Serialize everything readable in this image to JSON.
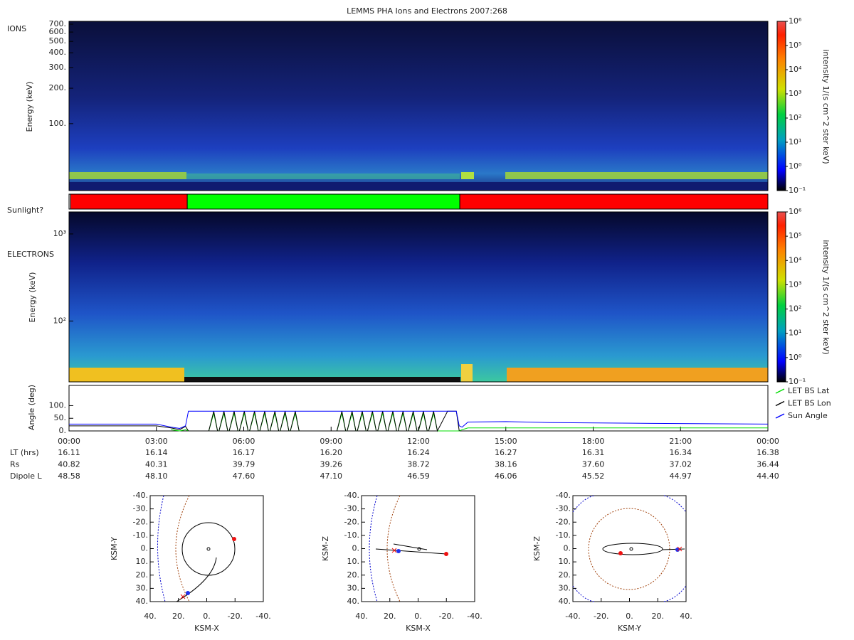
{
  "title": "LEMMS PHA Ions and Electrons  2007:268",
  "chart_data": [
    {
      "type": "heatmap",
      "label": "IONS",
      "ylabel": "Energy (keV)",
      "log_y": true,
      "ylim": [
        27,
        740
      ],
      "yticks": [
        {
          "value": 100,
          "label": "100."
        },
        {
          "value": 200,
          "label": "200."
        },
        {
          "value": 300,
          "label": "300."
        },
        {
          "value": 400,
          "label": "400."
        },
        {
          "value": 500,
          "label": "500."
        },
        {
          "value": 600,
          "label": "600."
        },
        {
          "value": 700,
          "label": "700."
        }
      ],
      "colorbar": {
        "label": "intensity 1/(s cm^2 ster keV)",
        "log": true,
        "lim": [
          0.1,
          1000000
        ],
        "ticks": [
          {
            "value": 0.1,
            "label": "10⁻¹"
          },
          {
            "value": 1,
            "label": "10⁰"
          },
          {
            "value": 10,
            "label": "10¹"
          },
          {
            "value": 100,
            "label": "10²"
          },
          {
            "value": 1000,
            "label": "10³"
          },
          {
            "value": 10000,
            "label": "10⁴"
          },
          {
            "value": 100000,
            "label": "10⁵"
          },
          {
            "value": 1000000,
            "label": "10⁶"
          }
        ]
      }
    },
    {
      "type": "timeline",
      "label": "Sunlight?",
      "xlim": [
        0,
        24
      ],
      "segments": [
        {
          "start": 0.05,
          "end": 4.06,
          "color": "#ff0000"
        },
        {
          "start": 4.06,
          "end": 13.42,
          "color": "#00ff00"
        },
        {
          "start": 13.42,
          "end": 24,
          "color": "#ff0000"
        }
      ]
    },
    {
      "type": "heatmap",
      "label": "ELECTRONS",
      "ylabel": "Energy (keV)",
      "log_y": true,
      "ylim": [
        20,
        1790
      ],
      "yticks": [
        {
          "value": 100,
          "label": "10²"
        },
        {
          "value": 1000,
          "label": "10³"
        }
      ],
      "colorbar": {
        "label": "intensity 1/(s cm^2 ster keV)",
        "log": true,
        "lim": [
          0.1,
          1000000
        ],
        "ticks": [
          {
            "value": 0.1,
            "label": "10⁻¹"
          },
          {
            "value": 1,
            "label": "10⁰"
          },
          {
            "value": 10,
            "label": "10¹"
          },
          {
            "value": 100,
            "label": "10²"
          },
          {
            "value": 1000,
            "label": "10³"
          },
          {
            "value": 10000,
            "label": "10⁴"
          },
          {
            "value": 100000,
            "label": "10⁵"
          },
          {
            "value": 1000000,
            "label": "10⁶"
          }
        ]
      }
    },
    {
      "type": "line",
      "ylabel": "Angle (deg)",
      "xlim": [
        0,
        24
      ],
      "ylim": [
        0,
        180
      ],
      "yticks": [
        {
          "value": 0,
          "label": "0."
        },
        {
          "value": 50,
          "label": "50."
        },
        {
          "value": 100,
          "label": "100."
        }
      ],
      "xticks": [
        {
          "value": 0,
          "label": "00:00"
        },
        {
          "value": 3,
          "label": "03:00"
        },
        {
          "value": 6,
          "label": "06:00"
        },
        {
          "value": 9,
          "label": "09:00"
        },
        {
          "value": 12,
          "label": "12:00"
        },
        {
          "value": 15,
          "label": "15:00"
        },
        {
          "value": 18,
          "label": "18:00"
        },
        {
          "value": 21,
          "label": "21:00"
        },
        {
          "value": 24,
          "label": "00:00"
        }
      ],
      "x": [
        0,
        3,
        3.5,
        3.8,
        4.0,
        4.1,
        4.5,
        4.8,
        4.97,
        5.1,
        5.15,
        5.32,
        5.45,
        5.5,
        5.67,
        5.8,
        5.85,
        6.02,
        6.15,
        6.2,
        6.37,
        6.5,
        6.55,
        6.72,
        6.85,
        6.9,
        7.07,
        7.2,
        7.25,
        7.42,
        7.55,
        7.6,
        7.77,
        7.9,
        8.5,
        9.2,
        9.37,
        9.5,
        9.55,
        9.72,
        9.85,
        9.9,
        10.07,
        10.2,
        10.25,
        10.42,
        10.55,
        10.6,
        10.77,
        10.9,
        10.95,
        11.12,
        11.25,
        11.3,
        11.47,
        11.6,
        11.65,
        11.82,
        11.95,
        12.0,
        12.17,
        12.3,
        12.35,
        12.52,
        12.65,
        13.0,
        13.3,
        13.4,
        13.5,
        13.7,
        15,
        16.5,
        20,
        24
      ],
      "series": [
        {
          "name": "LET BS Lat",
          "color": "#00dd00",
          "values": [
            null,
            null,
            5,
            0,
            5,
            0,
            0,
            0,
            70,
            0,
            0,
            70,
            0,
            0,
            70,
            0,
            0,
            70,
            0,
            0,
            70,
            0,
            0,
            70,
            0,
            0,
            70,
            0,
            0,
            70,
            0,
            0,
            70,
            0,
            0,
            0,
            70,
            0,
            0,
            70,
            0,
            0,
            70,
            0,
            0,
            70,
            0,
            0,
            70,
            0,
            0,
            70,
            0,
            0,
            70,
            0,
            0,
            70,
            0,
            0,
            70,
            0,
            0,
            70,
            0,
            0,
            0,
            0,
            5,
            12,
            12,
            12,
            12,
            12
          ]
        },
        {
          "name": "LET BS Lon",
          "color": "#000000",
          "values": [
            20,
            20,
            12,
            5,
            18,
            0,
            0,
            0,
            78,
            0,
            0,
            78,
            0,
            0,
            78,
            0,
            0,
            78,
            0,
            0,
            78,
            0,
            0,
            78,
            0,
            0,
            78,
            0,
            0,
            78,
            0,
            0,
            78,
            0,
            0,
            0,
            78,
            0,
            0,
            78,
            0,
            0,
            78,
            0,
            0,
            78,
            0,
            0,
            78,
            0,
            0,
            78,
            0,
            0,
            78,
            0,
            0,
            78,
            0,
            0,
            78,
            0,
            0,
            78,
            0,
            78,
            78,
            0,
            null,
            null,
            null,
            null,
            null,
            null
          ]
        },
        {
          "name": "Sun Angle",
          "color": "#0000ff",
          "values": [
            27,
            27,
            15,
            10,
            20,
            78,
            78,
            78,
            78,
            78,
            78,
            78,
            78,
            78,
            78,
            78,
            78,
            78,
            78,
            78,
            78,
            78,
            78,
            78,
            78,
            78,
            78,
            78,
            78,
            78,
            78,
            78,
            78,
            78,
            78,
            78,
            78,
            78,
            78,
            78,
            78,
            78,
            78,
            78,
            78,
            78,
            78,
            78,
            78,
            78,
            78,
            78,
            78,
            78,
            78,
            78,
            78,
            78,
            78,
            78,
            78,
            78,
            78,
            78,
            78,
            78,
            78,
            20,
            15,
            35,
            37,
            33,
            30,
            27
          ]
        }
      ],
      "rows": [
        {
          "label": "LT (hrs)",
          "values": [
            16.11,
            16.14,
            16.17,
            16.2,
            16.24,
            16.27,
            16.31,
            16.34,
            16.38
          ],
          "value_labels": [
            "16.11",
            "16.14",
            "16.17",
            "16.20",
            "16.24",
            "16.27",
            "16.31",
            "16.34",
            "16.38"
          ]
        },
        {
          "label": "Rs",
          "values": [
            40.82,
            40.31,
            39.79,
            39.26,
            38.72,
            38.16,
            37.6,
            37.02,
            36.44
          ],
          "value_labels": [
            "40.82",
            "40.31",
            "39.79",
            "39.26",
            "38.72",
            "38.16",
            "37.60",
            "37.02",
            "36.44"
          ]
        },
        {
          "label": "Dipole L",
          "values": [
            48.58,
            48.1,
            47.6,
            47.1,
            46.59,
            46.06,
            45.52,
            44.97,
            44.4
          ],
          "value_labels": [
            "48.58",
            "48.10",
            "47.60",
            "47.10",
            "46.59",
            "46.06",
            "45.52",
            "44.97",
            "44.40"
          ]
        }
      ]
    },
    {
      "type": "orbit",
      "xlabel": "KSM-X",
      "ylabel": "KSM-Y",
      "xlim": [
        40,
        -40
      ],
      "ylim": [
        -40,
        40
      ],
      "xticks": [
        {
          "value": 40,
          "label": "40."
        },
        {
          "value": 20,
          "label": "20."
        },
        {
          "value": 0,
          "label": "0."
        },
        {
          "value": -20,
          "label": "-20."
        },
        {
          "value": -40,
          "label": "-40."
        }
      ],
      "yticks": [
        {
          "value": -40,
          "label": "-40."
        },
        {
          "value": -30,
          "label": "-30."
        },
        {
          "value": -20,
          "label": "-20."
        },
        {
          "value": -10,
          "label": "-10."
        },
        {
          "value": 0,
          "label": "0."
        },
        {
          "value": 10,
          "label": "10."
        },
        {
          "value": 20,
          "label": "20."
        },
        {
          "value": 30,
          "label": "30."
        },
        {
          "value": 40,
          "label": "40."
        }
      ]
    },
    {
      "type": "orbit",
      "xlabel": "KSM-X",
      "ylabel": "KSM-Z",
      "xlim": [
        40,
        -40
      ],
      "ylim": [
        -40,
        40
      ],
      "xticks": [
        {
          "value": 40,
          "label": "40."
        },
        {
          "value": 20,
          "label": "20."
        },
        {
          "value": 0,
          "label": "0."
        },
        {
          "value": -20,
          "label": "-20."
        },
        {
          "value": -40,
          "label": "-40."
        }
      ],
      "yticks": [
        {
          "value": -40,
          "label": "-40."
        },
        {
          "value": -30,
          "label": "-30."
        },
        {
          "value": -20,
          "label": "-20."
        },
        {
          "value": -10,
          "label": "-10."
        },
        {
          "value": 0,
          "label": "0."
        },
        {
          "value": 10,
          "label": "10."
        },
        {
          "value": 20,
          "label": "20."
        },
        {
          "value": 30,
          "label": "30."
        },
        {
          "value": 40,
          "label": "40."
        }
      ]
    },
    {
      "type": "orbit",
      "xlabel": "KSM-Y",
      "ylabel": "KSM-Z",
      "xlim": [
        -40,
        40
      ],
      "ylim": [
        -40,
        40
      ],
      "xticks": [
        {
          "value": -40,
          "label": "-40."
        },
        {
          "value": -20,
          "label": "-20."
        },
        {
          "value": 0,
          "label": "0."
        },
        {
          "value": 20,
          "label": "20."
        },
        {
          "value": 40,
          "label": "40."
        }
      ],
      "yticks": [
        {
          "value": -40,
          "label": "-40."
        },
        {
          "value": -30,
          "label": "-30."
        },
        {
          "value": -20,
          "label": "-20."
        },
        {
          "value": -10,
          "label": "-10."
        },
        {
          "value": 0,
          "label": "0."
        },
        {
          "value": 10,
          "label": "10."
        },
        {
          "value": 20,
          "label": "20."
        },
        {
          "value": 30,
          "label": "30."
        },
        {
          "value": 40,
          "label": "40."
        }
      ]
    }
  ]
}
